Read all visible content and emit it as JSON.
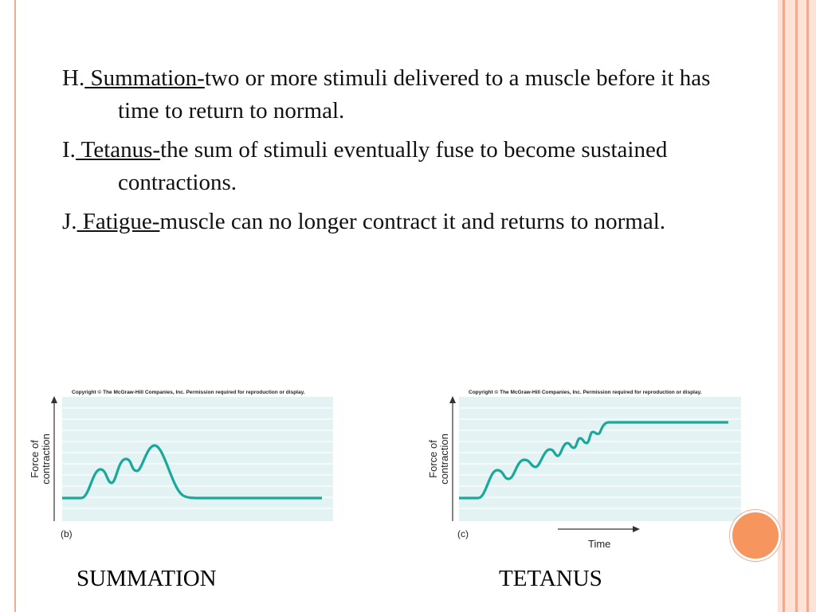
{
  "items": [
    {
      "marker": "H.",
      "term": " Summation-",
      "text": "two or more stimuli delivered to a muscle before it has time to return to normal."
    },
    {
      "marker": "I.",
      "term": " Tetanus-",
      "text": "the sum of stimuli eventually fuse to become sustained contractions."
    },
    {
      "marker": "J.",
      "term": " Fatigue-",
      "text": "muscle can no longer contract it and returns to normal."
    }
  ],
  "figures": [
    {
      "copyright": "Copyright © The McGraw-Hill Companies, Inc. Permission required for reproduction or display.",
      "ylabel": "Force of contraction",
      "panel": "(b)",
      "xlabel": "",
      "caption": "SUMMATION"
    },
    {
      "copyright": "Copyright © The McGraw-Hill Companies, Inc. Permission required for reproduction or display.",
      "ylabel": "Force of contraction",
      "panel": "(c)",
      "xlabel": "Time",
      "caption": "TETANUS"
    }
  ],
  "colors": {
    "accent": "#f2a990",
    "curve": "#1aa89a",
    "plot_bg": "#e3f3f3",
    "dot": "#f7955e"
  }
}
